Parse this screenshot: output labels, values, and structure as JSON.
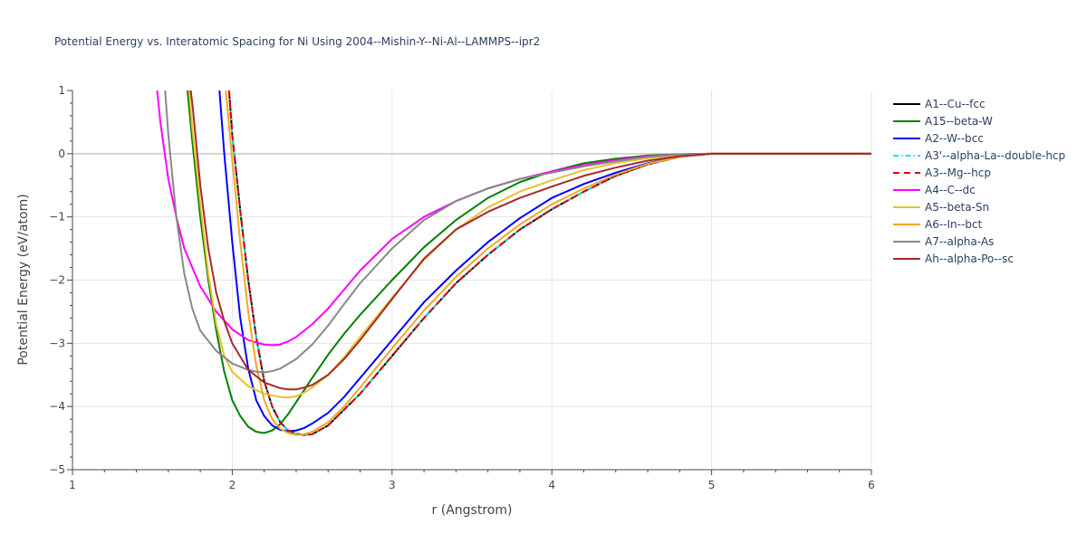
{
  "chart_data": {
    "type": "line",
    "title": "Potential Energy vs. Interatomic Spacing for Ni Using 2004--Mishin-Y--Ni-Al--LAMMPS--ipr2",
    "xlabel": "r (Angstrom)",
    "ylabel": "Potential Energy (eV/atom)",
    "xlim": [
      1,
      6
    ],
    "ylim": [
      -5,
      1
    ],
    "xticks": [
      1,
      2,
      3,
      4,
      5,
      6
    ],
    "xtick_labels": [
      "1",
      "2",
      "3",
      "4",
      "5",
      "6"
    ],
    "yticks": [
      1,
      0,
      -1,
      -2,
      -3,
      -4,
      -5
    ],
    "ytick_labels": [
      "1",
      "0",
      "−1",
      "−2",
      "−3",
      "−4",
      "−5"
    ],
    "grid": true,
    "legend_position": "right",
    "series": [
      {
        "name": "A1--Cu--fcc",
        "color": "#000000",
        "dash": "solid",
        "x": [
          1.98,
          2.0,
          2.05,
          2.1,
          2.15,
          2.2,
          2.25,
          2.3,
          2.35,
          2.4,
          2.45,
          2.5,
          2.6,
          2.7,
          2.8,
          3.0,
          3.2,
          3.4,
          3.6,
          3.8,
          4.0,
          4.2,
          4.4,
          4.6,
          4.8,
          4.9,
          5.0,
          5.5,
          6.0
        ],
        "y": [
          1.0,
          0.3,
          -0.9,
          -2.0,
          -2.9,
          -3.6,
          -4.0,
          -4.25,
          -4.38,
          -4.43,
          -4.45,
          -4.44,
          -4.3,
          -4.05,
          -3.8,
          -3.2,
          -2.6,
          -2.05,
          -1.6,
          -1.2,
          -0.88,
          -0.6,
          -0.35,
          -0.17,
          -0.05,
          -0.02,
          0.0,
          0.0,
          0.0
        ]
      },
      {
        "name": "A15--beta-W",
        "color": "#008000",
        "dash": "solid",
        "x": [
          1.72,
          1.75,
          1.8,
          1.85,
          1.9,
          1.95,
          2.0,
          2.05,
          2.1,
          2.15,
          2.2,
          2.25,
          2.3,
          2.35,
          2.4,
          2.5,
          2.6,
          2.7,
          2.8,
          3.0,
          3.2,
          3.4,
          3.6,
          3.8,
          4.0,
          4.2,
          4.4,
          4.6,
          4.8,
          5.0,
          5.5,
          6.0
        ],
        "y": [
          1.0,
          0.2,
          -1.0,
          -2.0,
          -2.8,
          -3.45,
          -3.9,
          -4.15,
          -4.32,
          -4.4,
          -4.42,
          -4.38,
          -4.28,
          -4.12,
          -3.93,
          -3.55,
          -3.18,
          -2.85,
          -2.55,
          -2.0,
          -1.48,
          -1.05,
          -0.7,
          -0.45,
          -0.28,
          -0.15,
          -0.08,
          -0.03,
          -0.01,
          0.0,
          0.0,
          0.0
        ]
      },
      {
        "name": "A2--W--bcc",
        "color": "#0000ff",
        "dash": "solid",
        "x": [
          1.92,
          1.95,
          2.0,
          2.05,
          2.1,
          2.15,
          2.2,
          2.25,
          2.3,
          2.35,
          2.4,
          2.45,
          2.5,
          2.6,
          2.7,
          2.8,
          3.0,
          3.2,
          3.4,
          3.6,
          3.8,
          4.0,
          4.2,
          4.4,
          4.6,
          4.8,
          5.0,
          5.5,
          6.0
        ],
        "y": [
          1.0,
          0.0,
          -1.4,
          -2.6,
          -3.4,
          -3.9,
          -4.15,
          -4.3,
          -4.37,
          -4.39,
          -4.38,
          -4.34,
          -4.27,
          -4.1,
          -3.85,
          -3.55,
          -2.95,
          -2.35,
          -1.85,
          -1.4,
          -1.02,
          -0.7,
          -0.48,
          -0.3,
          -0.15,
          -0.05,
          0.0,
          0.0,
          0.0
        ]
      },
      {
        "name": "A3'--alpha-La--double-hcp",
        "color": "#00e5ee",
        "dash": "6,3,1.5,3",
        "x": [
          1.98,
          2.0,
          2.05,
          2.1,
          2.15,
          2.2,
          2.25,
          2.3,
          2.35,
          2.4,
          2.45,
          2.5,
          2.6,
          2.7,
          2.8,
          3.0,
          3.2,
          3.4,
          3.6,
          3.8,
          4.0,
          4.2,
          4.4,
          4.6,
          4.8,
          4.9,
          5.0,
          5.5,
          6.0
        ],
        "y": [
          1.0,
          0.3,
          -0.9,
          -2.0,
          -2.9,
          -3.6,
          -4.0,
          -4.25,
          -4.38,
          -4.43,
          -4.45,
          -4.44,
          -4.3,
          -4.05,
          -3.8,
          -3.2,
          -2.6,
          -2.05,
          -1.6,
          -1.2,
          -0.88,
          -0.6,
          -0.35,
          -0.17,
          -0.05,
          -0.02,
          0.0,
          0.0,
          0.0
        ]
      },
      {
        "name": "A3--Mg--hcp",
        "color": "#dd0000",
        "dash": "7,5",
        "x": [
          1.98,
          2.0,
          2.05,
          2.1,
          2.15,
          2.2,
          2.25,
          2.3,
          2.35,
          2.4,
          2.45,
          2.5,
          2.6,
          2.7,
          2.8,
          3.0,
          3.2,
          3.4,
          3.6,
          3.8,
          4.0,
          4.2,
          4.4,
          4.6,
          4.8,
          4.9,
          5.0,
          5.5,
          6.0
        ],
        "y": [
          1.0,
          0.3,
          -0.9,
          -2.0,
          -2.9,
          -3.6,
          -4.0,
          -4.25,
          -4.38,
          -4.43,
          -4.45,
          -4.44,
          -4.3,
          -4.05,
          -3.8,
          -3.2,
          -2.6,
          -2.05,
          -1.6,
          -1.2,
          -0.88,
          -0.6,
          -0.35,
          -0.17,
          -0.05,
          -0.02,
          0.0,
          0.0,
          0.0
        ]
      },
      {
        "name": "A4--C--dc",
        "color": "#ff00ff",
        "dash": "solid",
        "x": [
          1.53,
          1.55,
          1.6,
          1.65,
          1.7,
          1.8,
          1.9,
          2.0,
          2.1,
          2.2,
          2.25,
          2.3,
          2.35,
          2.4,
          2.5,
          2.6,
          2.7,
          2.8,
          3.0,
          3.2,
          3.4,
          3.6,
          3.8,
          4.0,
          4.2,
          4.4,
          4.6,
          4.8,
          5.0,
          5.5,
          6.0
        ],
        "y": [
          1.0,
          0.5,
          -0.4,
          -1.0,
          -1.5,
          -2.1,
          -2.5,
          -2.78,
          -2.95,
          -3.02,
          -3.03,
          -3.02,
          -2.97,
          -2.9,
          -2.7,
          -2.45,
          -2.15,
          -1.85,
          -1.35,
          -1.0,
          -0.75,
          -0.55,
          -0.4,
          -0.28,
          -0.18,
          -0.1,
          -0.04,
          -0.01,
          0.0,
          0.0,
          0.0
        ]
      },
      {
        "name": "A5--beta-Sn",
        "color": "#e6c229",
        "dash": "solid",
        "x": [
          1.73,
          1.75,
          1.8,
          1.85,
          1.9,
          1.95,
          2.0,
          2.1,
          2.2,
          2.3,
          2.35,
          2.4,
          2.45,
          2.5,
          2.6,
          2.7,
          2.8,
          3.0,
          3.2,
          3.4,
          3.6,
          3.8,
          4.0,
          4.2,
          4.4,
          4.6,
          4.8,
          5.0,
          5.5,
          6.0
        ],
        "y": [
          1.0,
          0.4,
          -0.8,
          -1.9,
          -2.7,
          -3.2,
          -3.45,
          -3.68,
          -3.8,
          -3.85,
          -3.86,
          -3.84,
          -3.78,
          -3.7,
          -3.5,
          -3.22,
          -2.9,
          -2.28,
          -1.68,
          -1.2,
          -0.85,
          -0.6,
          -0.42,
          -0.26,
          -0.15,
          -0.07,
          -0.02,
          0.0,
          0.0,
          0.0
        ]
      },
      {
        "name": "A6--In--bct",
        "color": "#f5a623",
        "dash": "solid",
        "x": [
          1.96,
          2.0,
          2.05,
          2.1,
          2.15,
          2.2,
          2.25,
          2.3,
          2.35,
          2.4,
          2.45,
          2.5,
          2.6,
          2.7,
          2.8,
          3.0,
          3.2,
          3.4,
          3.6,
          3.8,
          4.0,
          4.2,
          4.4,
          4.6,
          4.8,
          5.0,
          5.5,
          6.0
        ],
        "y": [
          1.0,
          -0.1,
          -1.4,
          -2.5,
          -3.35,
          -3.9,
          -4.2,
          -4.35,
          -4.42,
          -4.45,
          -4.44,
          -4.4,
          -4.25,
          -4.0,
          -3.7,
          -3.08,
          -2.48,
          -1.95,
          -1.5,
          -1.12,
          -0.8,
          -0.55,
          -0.33,
          -0.16,
          -0.05,
          0.0,
          0.0,
          0.0
        ]
      },
      {
        "name": "A7--alpha-As",
        "color": "#888888",
        "dash": "solid",
        "x": [
          1.58,
          1.6,
          1.65,
          1.7,
          1.75,
          1.8,
          1.9,
          2.0,
          2.1,
          2.15,
          2.2,
          2.25,
          2.3,
          2.4,
          2.5,
          2.6,
          2.7,
          2.8,
          3.0,
          3.2,
          3.4,
          3.6,
          3.8,
          4.0,
          4.2,
          4.4,
          4.6,
          4.8,
          5.0,
          5.5,
          6.0
        ],
        "y": [
          1.0,
          0.3,
          -1.0,
          -1.9,
          -2.45,
          -2.8,
          -3.12,
          -3.32,
          -3.42,
          -3.45,
          -3.46,
          -3.44,
          -3.4,
          -3.25,
          -3.02,
          -2.72,
          -2.38,
          -2.05,
          -1.5,
          -1.05,
          -0.75,
          -0.55,
          -0.4,
          -0.3,
          -0.2,
          -0.12,
          -0.05,
          -0.01,
          0.0,
          0.0,
          0.0
        ]
      },
      {
        "name": "Ah--alpha-Po--sc",
        "color": "#a52a2a",
        "dash": "solid",
        "x": [
          1.74,
          1.75,
          1.8,
          1.85,
          1.9,
          1.95,
          2.0,
          2.1,
          2.2,
          2.3,
          2.35,
          2.4,
          2.45,
          2.5,
          2.6,
          2.7,
          2.8,
          3.0,
          3.2,
          3.4,
          3.6,
          3.8,
          4.0,
          4.2,
          4.4,
          4.6,
          4.8,
          5.0,
          5.5,
          6.0
        ],
        "y": [
          1.0,
          0.8,
          -0.5,
          -1.5,
          -2.2,
          -2.65,
          -3.0,
          -3.42,
          -3.62,
          -3.71,
          -3.73,
          -3.73,
          -3.7,
          -3.66,
          -3.5,
          -3.25,
          -2.95,
          -2.3,
          -1.66,
          -1.2,
          -0.92,
          -0.7,
          -0.52,
          -0.35,
          -0.22,
          -0.11,
          -0.04,
          0.0,
          0.0,
          0.0
        ]
      }
    ]
  }
}
